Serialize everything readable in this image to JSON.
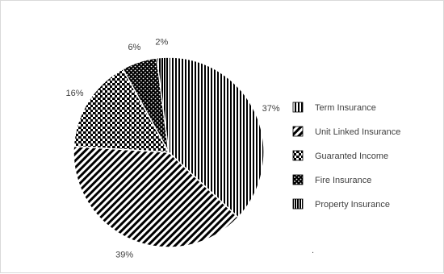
{
  "chart_data": {
    "type": "pie",
    "title": "",
    "categories": [
      "Term Insurance",
      "Unit Linked Insurance",
      "Guaranted Income",
      "Fire Insurance",
      "Property Insurance"
    ],
    "values": [
      37,
      39,
      16,
      6,
      2
    ],
    "value_labels": [
      "37%",
      "39%",
      "16%",
      "6%",
      "2%"
    ],
    "legend": "right",
    "patterns": [
      "vertical-lines",
      "diagonal-lines",
      "checker",
      "dots",
      "dense-vertical"
    ]
  },
  "footnote": "."
}
